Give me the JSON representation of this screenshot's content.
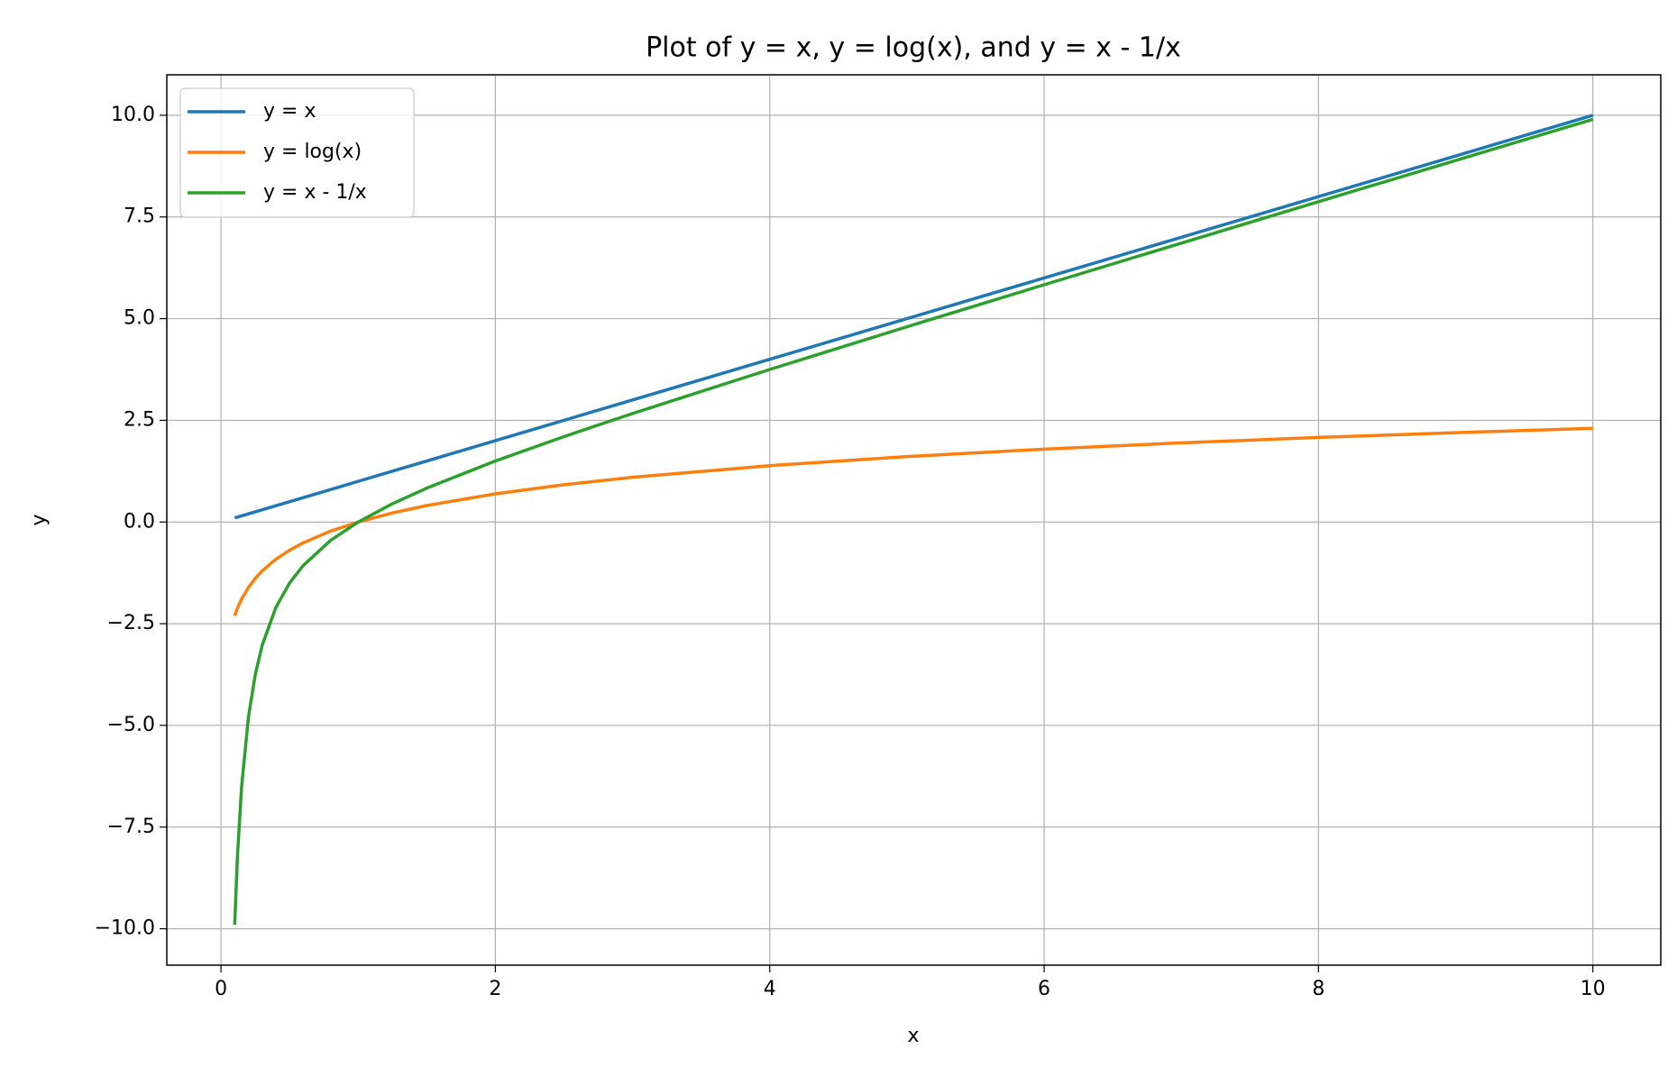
{
  "chart_data": {
    "type": "line",
    "title": "Plot of y = x, y = log(x), and y = x - 1/x",
    "x_label": "x",
    "y_label": "y",
    "x": [
      0.1,
      0.12,
      0.15,
      0.2,
      0.25,
      0.3,
      0.4,
      0.5,
      0.6,
      0.8,
      1,
      1.25,
      1.5,
      2,
      2.5,
      3,
      4,
      5,
      6,
      7,
      8,
      9,
      10
    ],
    "series": [
      {
        "name": "y = x",
        "color": "#1f77b4",
        "values": [
          0.1,
          0.12,
          0.15,
          0.2,
          0.25,
          0.3,
          0.4,
          0.5,
          0.6,
          0.8,
          1,
          1.25,
          1.5,
          2,
          2.5,
          3,
          4,
          5,
          6,
          7,
          8,
          9,
          10
        ]
      },
      {
        "name": "y = log(x)",
        "color": "#ff7f0e",
        "values": [
          -2.303,
          -2.12,
          -1.897,
          -1.609,
          -1.386,
          -1.204,
          -0.916,
          -0.693,
          -0.511,
          -0.223,
          0,
          0.223,
          0.405,
          0.693,
          0.916,
          1.099,
          1.386,
          1.609,
          1.792,
          1.946,
          2.079,
          2.197,
          2.303
        ]
      },
      {
        "name": "y = x - 1/x",
        "color": "#2ca02c",
        "values": [
          -9.9,
          -8.213,
          -6.517,
          -4.8,
          -3.75,
          -3.033,
          -2.1,
          -1.5,
          -1.067,
          -0.45,
          0,
          0.45,
          0.833,
          1.5,
          2.1,
          2.667,
          3.75,
          4.8,
          5.833,
          6.857,
          7.875,
          8.889,
          9.9
        ]
      }
    ],
    "xlim": [
      -0.395,
      10.495
    ],
    "ylim": [
      -10.895,
      10.995
    ],
    "xticks": [
      0,
      2,
      4,
      6,
      8,
      10
    ],
    "yticks": [
      {
        "value": -10,
        "label": "−10.0"
      },
      {
        "value": -7.5,
        "label": "−7.5"
      },
      {
        "value": -5,
        "label": "−5.0"
      },
      {
        "value": -2.5,
        "label": "−2.5"
      },
      {
        "value": 0,
        "label": "0.0"
      },
      {
        "value": 2.5,
        "label": "2.5"
      },
      {
        "value": 5,
        "label": "5.0"
      },
      {
        "value": 7.5,
        "label": "7.5"
      },
      {
        "value": 10,
        "label": "10.0"
      }
    ],
    "grid": true,
    "legend": "upper-left"
  }
}
